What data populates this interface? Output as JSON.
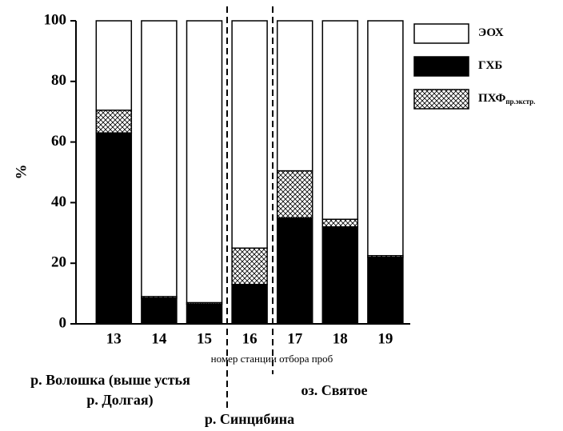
{
  "chart_data": {
    "type": "stacked_bar",
    "y_label": "%",
    "x_label": "номер станции отбора проб",
    "categories": [
      "13",
      "14",
      "15",
      "16",
      "17",
      "18",
      "19"
    ],
    "series": [
      {
        "name": "ГХБ",
        "color": "#000000",
        "values": [
          63,
          8.5,
          6.5,
          13,
          35,
          32,
          22
        ]
      },
      {
        "name": "ПХФ",
        "subscript": "пр.экстр.",
        "color": "#000000",
        "pattern": "crosshatch",
        "values": [
          7.5,
          0.5,
          0.5,
          12,
          15.5,
          2.5,
          0.5
        ]
      },
      {
        "name": "ЭОХ",
        "color": "#ffffff",
        "values": [
          29.5,
          91,
          93,
          75,
          49.5,
          65.5,
          77.5
        ]
      }
    ],
    "legend_order": [
      2,
      0,
      1
    ],
    "ylim": [
      0,
      100
    ],
    "yticks": [
      0,
      20,
      40,
      60,
      80,
      100
    ],
    "annotations": [
      "р. Волошка (выше устья",
      "р. Долгая)",
      "р. Синцибина",
      "оз. Святое"
    ]
  }
}
